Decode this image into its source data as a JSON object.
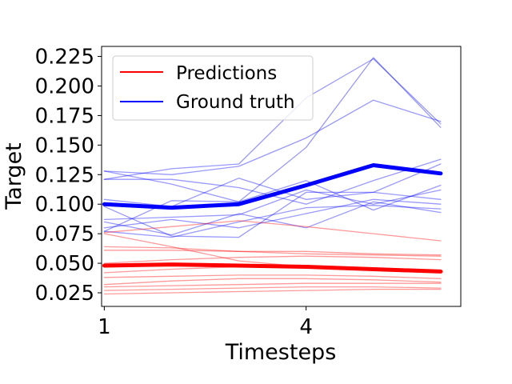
{
  "chart_data": {
    "type": "line",
    "title": "",
    "xlabel": "Timesteps",
    "ylabel": "Target",
    "xlim": [
      0.96,
      6.3
    ],
    "ylim": [
      0.0135,
      0.2335
    ],
    "xticks": [
      1,
      4
    ],
    "xtick_labels": [
      "1",
      "4"
    ],
    "yticks": [
      0.025,
      0.05,
      0.075,
      0.1,
      0.125,
      0.15,
      0.175,
      0.2,
      0.225
    ],
    "ytick_labels": [
      "0.025",
      "0.050",
      "0.075",
      "0.100",
      "0.125",
      "0.150",
      "0.175",
      "0.200",
      "0.225"
    ],
    "grid": false,
    "legend": {
      "position": "upper-left",
      "entries": [
        {
          "label": "Predictions",
          "color": "#ff0000"
        },
        {
          "label": "Ground truth",
          "color": "#0000ff"
        }
      ]
    },
    "x": [
      1,
      2,
      3,
      4,
      5,
      6
    ],
    "series": [
      {
        "name": "Ground truth mean",
        "role": "mean",
        "group": "truth",
        "color": "#0000ff",
        "values": [
          0.1,
          0.097,
          0.1,
          0.116,
          0.133,
          0.126
        ]
      },
      {
        "name": "Ground truth sample 1",
        "role": "sample",
        "group": "truth",
        "color": "#0000ff",
        "values": [
          0.128,
          0.117,
          0.102,
          0.148,
          0.224,
          0.165
        ]
      },
      {
        "name": "Ground truth sample 2",
        "role": "sample",
        "group": "truth",
        "color": "#0000ff",
        "values": [
          0.121,
          0.13,
          0.134,
          0.19,
          0.223,
          0.168
        ]
      },
      {
        "name": "Ground truth sample 3",
        "role": "sample",
        "group": "truth",
        "color": "#0000ff",
        "values": [
          0.128,
          0.125,
          0.132,
          0.156,
          0.188,
          0.17
        ]
      },
      {
        "name": "Ground truth sample 4",
        "role": "sample",
        "group": "truth",
        "color": "#0000ff",
        "values": [
          0.121,
          0.121,
          0.114,
          0.1,
          0.12,
          0.138
        ]
      },
      {
        "name": "Ground truth sample 5",
        "role": "sample",
        "group": "truth",
        "color": "#0000ff",
        "values": [
          0.104,
          0.098,
          0.122,
          0.104,
          0.11,
          0.134
        ]
      },
      {
        "name": "Ground truth sample 6",
        "role": "sample",
        "group": "truth",
        "color": "#0000ff",
        "values": [
          0.098,
          0.073,
          0.072,
          0.11,
          0.11,
          0.104
        ]
      },
      {
        "name": "Ground truth sample 7",
        "role": "sample",
        "group": "truth",
        "color": "#0000ff",
        "values": [
          0.077,
          0.103,
          0.102,
          0.12,
          0.095,
          0.116
        ]
      },
      {
        "name": "Ground truth sample 8",
        "role": "sample",
        "group": "truth",
        "color": "#0000ff",
        "values": [
          0.087,
          0.089,
          0.091,
          0.112,
          0.1,
          0.112
        ]
      },
      {
        "name": "Ground truth sample 9",
        "role": "sample",
        "group": "truth",
        "color": "#0000ff",
        "values": [
          0.08,
          0.087,
          0.08,
          0.092,
          0.104,
          0.1
        ]
      },
      {
        "name": "Ground truth sample 10",
        "role": "sample",
        "group": "truth",
        "color": "#0000ff",
        "values": [
          0.085,
          0.074,
          0.092,
          0.08,
          0.102,
          0.093
        ]
      },
      {
        "name": "Ground truth sample 11",
        "role": "sample",
        "group": "truth",
        "color": "#0000ff",
        "values": [
          0.077,
          0.072,
          0.085,
          0.097,
          0.099,
          0.096
        ]
      },
      {
        "name": "Predictions mean",
        "role": "mean",
        "group": "predictions",
        "color": "#ff0000",
        "values": [
          0.048,
          0.049,
          0.048,
          0.047,
          0.045,
          0.043
        ]
      },
      {
        "name": "Predictions sample 1",
        "role": "sample",
        "group": "predictions",
        "color": "#ff0000",
        "values": [
          0.076,
          0.081,
          0.086,
          0.081,
          0.075,
          0.069
        ]
      },
      {
        "name": "Predictions sample 2",
        "role": "sample",
        "group": "predictions",
        "color": "#ff0000",
        "values": [
          0.064,
          0.063,
          0.06,
          0.058,
          0.057,
          0.056
        ]
      },
      {
        "name": "Predictions sample 3",
        "role": "sample",
        "group": "predictions",
        "color": "#ff0000",
        "values": [
          0.061,
          0.061,
          0.06,
          0.06,
          0.058,
          0.057
        ]
      },
      {
        "name": "Predictions sample 4",
        "role": "sample",
        "group": "predictions",
        "color": "#ff0000",
        "values": [
          0.075,
          0.064,
          0.052,
          0.047,
          0.045,
          0.043
        ]
      },
      {
        "name": "Predictions sample 5",
        "role": "sample",
        "group": "predictions",
        "color": "#ff0000",
        "values": [
          0.05,
          0.053,
          0.055,
          0.056,
          0.055,
          0.053
        ]
      },
      {
        "name": "Predictions sample 6",
        "role": "sample",
        "group": "predictions",
        "color": "#ff0000",
        "values": [
          0.042,
          0.045,
          0.047,
          0.046,
          0.044,
          0.042
        ]
      },
      {
        "name": "Predictions sample 7",
        "role": "sample",
        "group": "predictions",
        "color": "#ff0000",
        "values": [
          0.038,
          0.039,
          0.04,
          0.04,
          0.039,
          0.037
        ]
      },
      {
        "name": "Predictions sample 8",
        "role": "sample",
        "group": "predictions",
        "color": "#ff0000",
        "values": [
          0.032,
          0.035,
          0.037,
          0.037,
          0.036,
          0.034
        ]
      },
      {
        "name": "Predictions sample 9",
        "role": "sample",
        "group": "predictions",
        "color": "#ff0000",
        "values": [
          0.03,
          0.031,
          0.032,
          0.033,
          0.033,
          0.033
        ]
      },
      {
        "name": "Predictions sample 10",
        "role": "sample",
        "group": "predictions",
        "color": "#ff0000",
        "values": [
          0.027,
          0.028,
          0.029,
          0.03,
          0.03,
          0.029
        ]
      },
      {
        "name": "Predictions sample 11",
        "role": "sample",
        "group": "predictions",
        "color": "#ff0000",
        "values": [
          0.024,
          0.025,
          0.026,
          0.027,
          0.028,
          0.028
        ]
      }
    ]
  }
}
